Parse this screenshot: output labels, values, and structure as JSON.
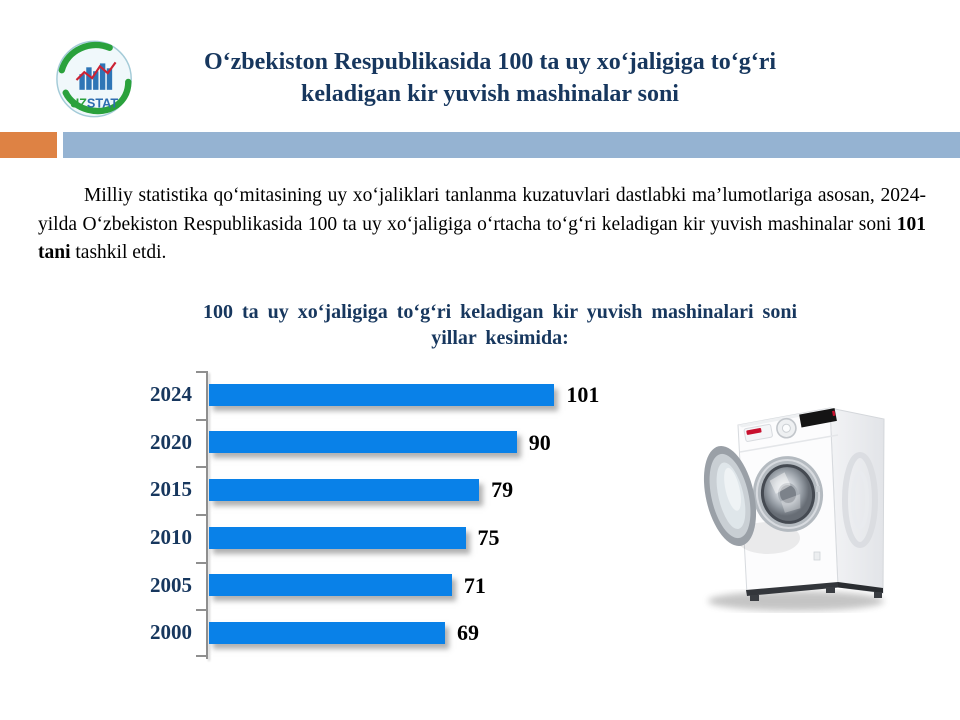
{
  "logo": {
    "text_uz": "UZ",
    "text_stat": "STAT",
    "uz_color": "#2aa13c",
    "stat_color": "#2e6db0"
  },
  "header": {
    "title_line1": "O‘zbekiston Respublikasida 100 ta uy xo‘jaligiga to‘g‘ri",
    "title_line2": "keladigan kir yuvish mashinalar soni",
    "title_color": "#17375E"
  },
  "divider": {
    "orange_color": "#DE8244",
    "blue_color": "#95B3D2"
  },
  "intro": {
    "text_before": "Milliy statistika qo‘mitasining uy xo‘jaliklari tanlanma kuzatuvlari dastlabki ma’lumotlariga asosan, 2024-yilda O‘zbekiston Respublikasida 100 ta uy xo‘jaligiga o‘rtacha to‘g‘ri keladigan kir yuvish mashinalar soni ",
    "text_bold": "101 tani",
    "text_after": " tashkil etdi."
  },
  "chart_data": {
    "type": "bar",
    "orientation": "horizontal",
    "title_line1": "100 ta uy xo‘jaligiga to‘g‘ri keladigan kir yuvish mashinalari soni",
    "title_line2": "yillar kesimida:",
    "categories": [
      "2024",
      "2020",
      "2015",
      "2010",
      "2005",
      "2000"
    ],
    "values": [
      101,
      90,
      79,
      75,
      71,
      69
    ],
    "xlim": [
      0,
      105
    ],
    "grid": false,
    "legend": false,
    "bar_color": "#0981E8",
    "category_color": "#17375E",
    "value_color": "#000000",
    "axis_color": "#8f8f8f"
  },
  "washer": {
    "alt": "open front-load washing machine photo"
  }
}
